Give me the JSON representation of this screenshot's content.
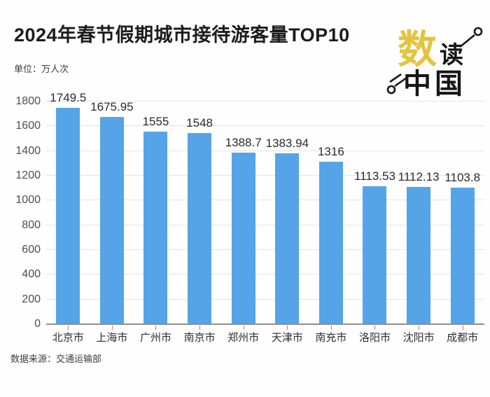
{
  "header": {
    "title": "2024年春节假期城市接待游客量TOP10",
    "unit_label": "单位：万人次"
  },
  "logo": {
    "char_primary": "数",
    "char_secondary": "读",
    "chars_bottom": "中国",
    "accent_color": "#e3c43c",
    "ink_color": "#161616"
  },
  "chart_data": {
    "type": "bar",
    "title": "2024年春节假期城市接待游客量TOP10",
    "unit": "万人次",
    "categories": [
      "北京市",
      "上海市",
      "广州市",
      "南京市",
      "郑州市",
      "天津市",
      "南充市",
      "洛阳市",
      "沈阳市",
      "成都市"
    ],
    "values": [
      1749.5,
      1675.95,
      1555,
      1548,
      1388.7,
      1383.94,
      1316,
      1113.53,
      1112.13,
      1103.8
    ],
    "value_labels": [
      "1749.5",
      "1675.95",
      "1555",
      "1548",
      "1388.7",
      "1383.94",
      "1316",
      "1113.53",
      "1112.13",
      "1103.8"
    ],
    "ylim": [
      0,
      1800
    ],
    "yticks": [
      0,
      200,
      400,
      600,
      800,
      1000,
      1200,
      1400,
      1600,
      1800
    ],
    "grid": true,
    "legend": "none",
    "bar_color": "#54a4e7",
    "xlabel": "",
    "ylabel": ""
  },
  "footer": {
    "source": "数据来源：交通运输部"
  }
}
